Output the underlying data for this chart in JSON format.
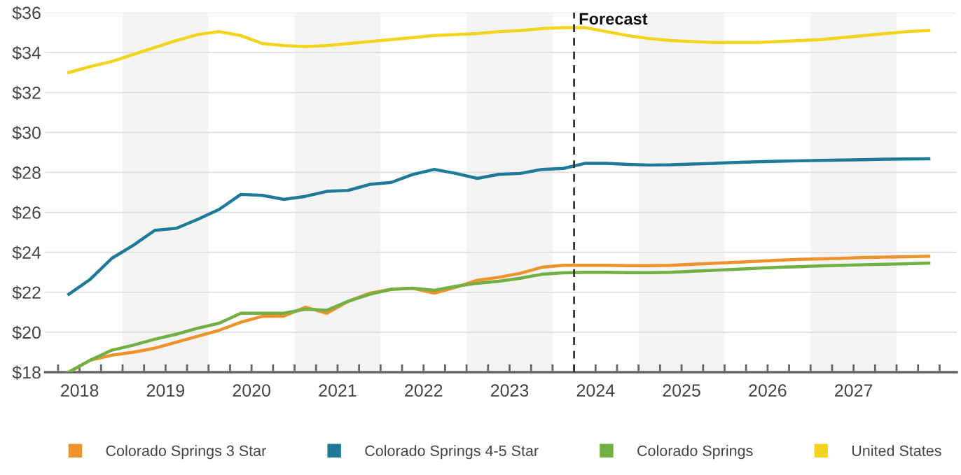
{
  "chart_data": {
    "type": "line",
    "x": [
      2018.375,
      2018.625,
      2018.875,
      2019.125,
      2019.375,
      2019.625,
      2019.875,
      2020.125,
      2020.375,
      2020.625,
      2020.875,
      2021.125,
      2021.375,
      2021.625,
      2021.875,
      2022.125,
      2022.375,
      2022.625,
      2022.875,
      2023.125,
      2023.375,
      2023.625,
      2023.875,
      2024.125,
      2024.375,
      2024.625,
      2024.875,
      2025.125,
      2025.375,
      2025.625,
      2025.875,
      2026.125,
      2026.375,
      2026.625,
      2026.875,
      2027.125,
      2027.375,
      2027.625,
      2027.875,
      2028.125,
      2028.375
    ],
    "series": [
      {
        "name": "Colorado Springs 3 Star",
        "color": "#f0922b",
        "values": [
          18.0,
          18.6,
          18.85,
          19.0,
          19.2,
          19.5,
          19.8,
          20.1,
          20.5,
          20.8,
          20.8,
          21.25,
          20.95,
          21.55,
          21.95,
          22.15,
          22.2,
          21.95,
          22.25,
          22.6,
          22.75,
          22.95,
          23.25,
          23.35,
          23.35,
          23.35,
          23.33,
          23.33,
          23.35,
          23.4,
          23.45,
          23.5,
          23.55,
          23.6,
          23.65,
          23.67,
          23.7,
          23.74,
          23.76,
          23.78,
          23.8
        ]
      },
      {
        "name": "Colorado Springs 4-5 Star",
        "color": "#1f7a99",
        "values": [
          21.9,
          22.65,
          23.7,
          24.35,
          25.1,
          25.2,
          25.65,
          26.15,
          26.9,
          26.85,
          26.65,
          26.8,
          27.05,
          27.1,
          27.4,
          27.5,
          27.9,
          28.15,
          27.95,
          27.7,
          27.9,
          27.95,
          28.15,
          28.2,
          28.45,
          28.45,
          28.4,
          28.37,
          28.38,
          28.42,
          28.45,
          28.5,
          28.53,
          28.56,
          28.58,
          28.6,
          28.62,
          28.64,
          28.66,
          28.67,
          28.68
        ]
      },
      {
        "name": "Colorado Springs",
        "color": "#72b043",
        "values": [
          18.0,
          18.6,
          19.1,
          19.35,
          19.65,
          19.9,
          20.2,
          20.45,
          20.95,
          20.95,
          20.95,
          21.15,
          21.1,
          21.55,
          21.9,
          22.15,
          22.2,
          22.1,
          22.3,
          22.45,
          22.55,
          22.7,
          22.9,
          22.97,
          23.0,
          23.0,
          22.98,
          22.98,
          23.0,
          23.05,
          23.1,
          23.15,
          23.2,
          23.25,
          23.28,
          23.32,
          23.35,
          23.38,
          23.4,
          23.43,
          23.46
        ]
      },
      {
        "name": "United States",
        "color": "#f2d41c",
        "values": [
          33.0,
          33.3,
          33.55,
          33.9,
          34.25,
          34.6,
          34.9,
          35.05,
          34.85,
          34.45,
          34.35,
          34.3,
          34.35,
          34.45,
          34.55,
          34.65,
          34.75,
          34.85,
          34.9,
          34.95,
          35.05,
          35.1,
          35.2,
          35.25,
          35.25,
          35.05,
          34.85,
          34.7,
          34.6,
          34.55,
          34.5,
          34.5,
          34.5,
          34.55,
          34.6,
          34.65,
          34.75,
          34.85,
          34.95,
          35.05,
          35.1
        ]
      }
    ],
    "xlim": [
      2018.1,
      2028.7
    ],
    "xticks": [
      {
        "value": 2018.25,
        "label": null
      },
      {
        "value": 2018.5,
        "label": "2018"
      },
      {
        "value": 2018.75,
        "label": null
      },
      {
        "value": 2019,
        "label": null
      },
      {
        "value": 2019.25,
        "label": null
      },
      {
        "value": 2019.5,
        "label": "2019"
      },
      {
        "value": 2019.75,
        "label": null
      },
      {
        "value": 2020,
        "label": null
      },
      {
        "value": 2020.25,
        "label": null
      },
      {
        "value": 2020.5,
        "label": "2020"
      },
      {
        "value": 2020.75,
        "label": null
      },
      {
        "value": 2021,
        "label": null
      },
      {
        "value": 2021.25,
        "label": null
      },
      {
        "value": 2021.5,
        "label": "2021"
      },
      {
        "value": 2021.75,
        "label": null
      },
      {
        "value": 2022,
        "label": null
      },
      {
        "value": 2022.25,
        "label": null
      },
      {
        "value": 2022.5,
        "label": "2022"
      },
      {
        "value": 2022.75,
        "label": null
      },
      {
        "value": 2023,
        "label": null
      },
      {
        "value": 2023.25,
        "label": null
      },
      {
        "value": 2023.5,
        "label": "2023"
      },
      {
        "value": 2023.75,
        "label": null
      },
      {
        "value": 2024,
        "label": null
      },
      {
        "value": 2024.25,
        "label": null
      },
      {
        "value": 2024.5,
        "label": "2024"
      },
      {
        "value": 2024.75,
        "label": null
      },
      {
        "value": 2025,
        "label": null
      },
      {
        "value": 2025.25,
        "label": null
      },
      {
        "value": 2025.5,
        "label": "2025"
      },
      {
        "value": 2025.75,
        "label": null
      },
      {
        "value": 2026,
        "label": null
      },
      {
        "value": 2026.25,
        "label": null
      },
      {
        "value": 2026.5,
        "label": "2026"
      },
      {
        "value": 2026.75,
        "label": null
      },
      {
        "value": 2027,
        "label": null
      },
      {
        "value": 2027.25,
        "label": null
      },
      {
        "value": 2027.5,
        "label": "2027"
      },
      {
        "value": 2027.75,
        "label": null
      },
      {
        "value": 2028,
        "label": null
      },
      {
        "value": 2028.25,
        "label": null
      },
      {
        "value": 2028.5,
        "label": null
      }
    ],
    "ylim": [
      18,
      36
    ],
    "yticks": [
      {
        "value": 18,
        "label": "$18"
      },
      {
        "value": 20,
        "label": "$20"
      },
      {
        "value": 22,
        "label": "$22"
      },
      {
        "value": 24,
        "label": "$24"
      },
      {
        "value": 26,
        "label": "$26"
      },
      {
        "value": 28,
        "label": "$28"
      },
      {
        "value": 30,
        "label": "$30"
      },
      {
        "value": 32,
        "label": "$32"
      },
      {
        "value": 34,
        "label": "$34"
      },
      {
        "value": 36,
        "label": "$36"
      }
    ],
    "grid": "y",
    "legend": "bottom",
    "marker": "none",
    "line_style": "solid",
    "ref_lines": [
      {
        "axis": "x",
        "value": 2024.25,
        "label": "Forecast",
        "color": "#333333",
        "line_style": "dashed"
      }
    ],
    "bands": [
      {
        "axis": "x",
        "from": 2019,
        "to": 2020,
        "color": "#f4f4f4"
      },
      {
        "axis": "x",
        "from": 2021,
        "to": 2022,
        "color": "#f4f4f4"
      },
      {
        "axis": "x",
        "from": 2023,
        "to": 2024,
        "color": "#f4f4f4"
      },
      {
        "axis": "x",
        "from": 2025,
        "to": 2026,
        "color": "#f4f4f4"
      },
      {
        "axis": "x",
        "from": 2027,
        "to": 2028,
        "color": "#f4f4f4"
      }
    ]
  }
}
